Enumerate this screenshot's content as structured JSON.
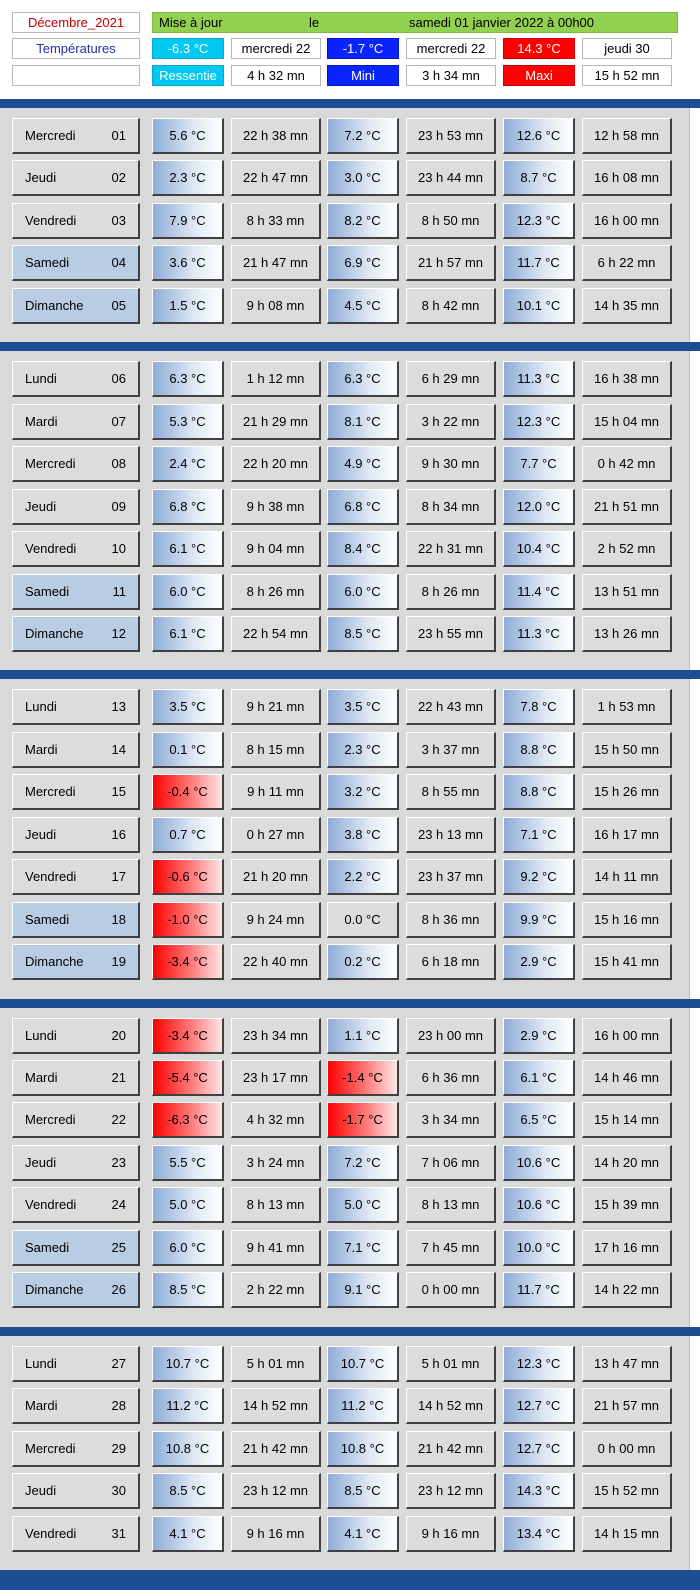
{
  "header": {
    "month_label": "Décembre_2021",
    "section_label": "Températures",
    "update_label": "Mise à jour",
    "update_le": "le",
    "update_date": "samedi 01 janvier 2022 à 00h00",
    "summary": {
      "ressentie_value": "-6.3 °C",
      "ressentie_date": "mercredi 22",
      "ressentie_label": "Ressentie",
      "ressentie_time": "4 h 32 mn",
      "mini_value": "-1.7 °C",
      "mini_date": "mercredi 22",
      "mini_label": "Mini",
      "mini_time": "3 h 34 mn",
      "maxi_value": "14.3 °C",
      "maxi_date": "jeudi 30",
      "maxi_label": "Maxi",
      "maxi_time": "15 h 52 mn"
    }
  },
  "colors": {
    "separator": "#1f4e94",
    "weekend_day": "#b8cce4",
    "ressentie": "#00c8f0",
    "mini": "#0a24ff",
    "maxi": "#ff0000",
    "update_bar": "#92d050"
  },
  "weeks": [
    {
      "days": [
        {
          "name": "Mercredi",
          "num": "01",
          "weekend": false,
          "r": "5.6 °C",
          "rt": "22 h 38 mn",
          "mn": "7.2 °C",
          "mnt": "23 h 53 mn",
          "mx": "12.6 °C",
          "mxt": "12 h 58 mn"
        },
        {
          "name": "Jeudi",
          "num": "02",
          "weekend": false,
          "r": "2.3 °C",
          "rt": "22 h 47 mn",
          "mn": "3.0 °C",
          "mnt": "23 h 44 mn",
          "mx": "8.7 °C",
          "mxt": "16 h 08 mn"
        },
        {
          "name": "Vendredi",
          "num": "03",
          "weekend": false,
          "r": "7.9 °C",
          "rt": "8 h 33 mn",
          "mn": "8.2 °C",
          "mnt": "8 h 50 mn",
          "mx": "12.3 °C",
          "mxt": "16 h 00 mn"
        },
        {
          "name": "Samedi",
          "num": "04",
          "weekend": true,
          "r": "3.6 °C",
          "rt": "21 h 47 mn",
          "mn": "6.9 °C",
          "mnt": "21 h 57 mn",
          "mx": "11.7 °C",
          "mxt": "6 h 22 mn"
        },
        {
          "name": "Dimanche",
          "num": "05",
          "weekend": true,
          "r": "1.5 °C",
          "rt": "9 h 08 mn",
          "mn": "4.5 °C",
          "mnt": "8 h 42 mn",
          "mx": "10.1 °C",
          "mxt": "14 h 35 mn"
        }
      ]
    },
    {
      "days": [
        {
          "name": "Lundi",
          "num": "06",
          "weekend": false,
          "r": "6.3 °C",
          "rt": "1 h 12 mn",
          "mn": "6.3 °C",
          "mnt": "6 h 29 mn",
          "mx": "11.3 °C",
          "mxt": "16 h 38 mn"
        },
        {
          "name": "Mardi",
          "num": "07",
          "weekend": false,
          "r": "5.3 °C",
          "rt": "21 h 29 mn",
          "mn": "8.1 °C",
          "mnt": "3 h 22 mn",
          "mx": "12.3 °C",
          "mxt": "15 h 04 mn"
        },
        {
          "name": "Mercredi",
          "num": "08",
          "weekend": false,
          "r": "2.4 °C",
          "rt": "22 h 20 mn",
          "mn": "4.9 °C",
          "mnt": "9 h 30 mn",
          "mx": "7.7 °C",
          "mxt": "0 h 42 mn"
        },
        {
          "name": "Jeudi",
          "num": "09",
          "weekend": false,
          "r": "6.8 °C",
          "rt": "9 h 38 mn",
          "mn": "6.8 °C",
          "mnt": "8 h 34 mn",
          "mx": "12.0 °C",
          "mxt": "21 h 51 mn"
        },
        {
          "name": "Vendredi",
          "num": "10",
          "weekend": false,
          "r": "6.1 °C",
          "rt": "9 h 04 mn",
          "mn": "8.4 °C",
          "mnt": "22 h 31 mn",
          "mx": "10.4 °C",
          "mxt": "2 h 52 mn"
        },
        {
          "name": "Samedi",
          "num": "11",
          "weekend": true,
          "r": "6.0 °C",
          "rt": "8 h 26 mn",
          "mn": "6.0 °C",
          "mnt": "8 h 26 mn",
          "mx": "11.4 °C",
          "mxt": "13 h 51 mn"
        },
        {
          "name": "Dimanche",
          "num": "12",
          "weekend": true,
          "r": "6.1 °C",
          "rt": "22 h 54 mn",
          "mn": "8.5 °C",
          "mnt": "23 h 55 mn",
          "mx": "11.3 °C",
          "mxt": "13 h 26 mn"
        }
      ]
    },
    {
      "days": [
        {
          "name": "Lundi",
          "num": "13",
          "weekend": false,
          "r": "3.5 °C",
          "rt": "9 h 21 mn",
          "mn": "3.5 °C",
          "mnt": "22 h 43 mn",
          "mx": "7.8 °C",
          "mxt": "1 h 53 mn"
        },
        {
          "name": "Mardi",
          "num": "14",
          "weekend": false,
          "r": "0.1 °C",
          "rt": "8 h 15 mn",
          "mn": "2.3 °C",
          "mnt": "3 h 37 mn",
          "mx": "8.8 °C",
          "mxt": "15 h 50 mn"
        },
        {
          "name": "Mercredi",
          "num": "15",
          "weekend": false,
          "r": "-0.4 °C",
          "rt": "9 h 11 mn",
          "mn": "3.2 °C",
          "mnt": "8 h 55 mn",
          "mx": "8.8 °C",
          "mxt": "15 h 26 mn"
        },
        {
          "name": "Jeudi",
          "num": "16",
          "weekend": false,
          "r": "0.7 °C",
          "rt": "0 h 27 mn",
          "mn": "3.8 °C",
          "mnt": "23 h 13 mn",
          "mx": "7.1 °C",
          "mxt": "16 h 17 mn"
        },
        {
          "name": "Vendredi",
          "num": "17",
          "weekend": false,
          "r": "-0.6 °C",
          "rt": "21 h 20 mn",
          "mn": "2.2 °C",
          "mnt": "23 h 37 mn",
          "mx": "9.2 °C",
          "mxt": "14 h 11 mn"
        },
        {
          "name": "Samedi",
          "num": "18",
          "weekend": true,
          "r": "-1.0 °C",
          "rt": "9 h 24 mn",
          "mn": "0.0 °C",
          "mnt": "8 h 36 mn",
          "mx": "9.9 °C",
          "mxt": "15 h 16 mn"
        },
        {
          "name": "Dimanche",
          "num": "19",
          "weekend": true,
          "r": "-3.4 °C",
          "rt": "22 h 40 mn",
          "mn": "0.2 °C",
          "mnt": "6 h 18 mn",
          "mx": "2.9 °C",
          "mxt": "15 h 41 mn"
        }
      ]
    },
    {
      "days": [
        {
          "name": "Lundi",
          "num": "20",
          "weekend": false,
          "r": "-3.4 °C",
          "rt": "23 h 34 mn",
          "mn": "1.1 °C",
          "mnt": "23 h 00 mn",
          "mx": "2.9 °C",
          "mxt": "16 h 00 mn"
        },
        {
          "name": "Mardi",
          "num": "21",
          "weekend": false,
          "r": "-5.4 °C",
          "rt": "23 h 17 mn",
          "mn": "-1.4 °C",
          "mnt": "6 h 36 mn",
          "mx": "6.1 °C",
          "mxt": "14 h 46 mn"
        },
        {
          "name": "Mercredi",
          "num": "22",
          "weekend": false,
          "r": "-6.3 °C",
          "rt": "4 h 32 mn",
          "mn": "-1.7 °C",
          "mnt": "3 h 34 mn",
          "mx": "6.5 °C",
          "mxt": "15 h 14 mn"
        },
        {
          "name": "Jeudi",
          "num": "23",
          "weekend": false,
          "r": "5.5 °C",
          "rt": "3 h 24 mn",
          "mn": "7.2 °C",
          "mnt": "7 h 06 mn",
          "mx": "10.6 °C",
          "mxt": "14 h 20 mn"
        },
        {
          "name": "Vendredi",
          "num": "24",
          "weekend": false,
          "r": "5.0 °C",
          "rt": "8 h 13 mn",
          "mn": "5.0 °C",
          "mnt": "8 h 13 mn",
          "mx": "10.6 °C",
          "mxt": "15 h 39 mn"
        },
        {
          "name": "Samedi",
          "num": "25",
          "weekend": true,
          "r": "6.0 °C",
          "rt": "9 h 41 mn",
          "mn": "7.1 °C",
          "mnt": "7 h 45 mn",
          "mx": "10.0 °C",
          "mxt": "17 h 16 mn"
        },
        {
          "name": "Dimanche",
          "num": "26",
          "weekend": true,
          "r": "8.5 °C",
          "rt": "2 h 22 mn",
          "mn": "9.1 °C",
          "mnt": "0 h 00 mn",
          "mx": "11.7 °C",
          "mxt": "14 h 22 mn"
        }
      ]
    },
    {
      "days": [
        {
          "name": "Lundi",
          "num": "27",
          "weekend": false,
          "r": "10.7 °C",
          "rt": "5 h 01 mn",
          "mn": "10.7 °C",
          "mnt": "5 h 01 mn",
          "mx": "12.3 °C",
          "mxt": "13 h 47 mn"
        },
        {
          "name": "Mardi",
          "num": "28",
          "weekend": false,
          "r": "11.2 °C",
          "rt": "14 h 52 mn",
          "mn": "11.2 °C",
          "mnt": "14 h 52 mn",
          "mx": "12.7 °C",
          "mxt": "21 h 57 mn"
        },
        {
          "name": "Mercredi",
          "num": "29",
          "weekend": false,
          "r": "10.8 °C",
          "rt": "21 h 42 mn",
          "mn": "10.8 °C",
          "mnt": "21 h 42 mn",
          "mx": "12.7 °C",
          "mxt": "0 h 00 mn"
        },
        {
          "name": "Jeudi",
          "num": "30",
          "weekend": false,
          "r": "8.5 °C",
          "rt": "23 h 12 mn",
          "mn": "8.5 °C",
          "mnt": "23 h 12 mn",
          "mx": "14.3 °C",
          "mxt": "15 h 52 mn"
        },
        {
          "name": "Vendredi",
          "num": "31",
          "weekend": false,
          "r": "4.1 °C",
          "rt": "9 h 16 mn",
          "mn": "4.1 °C",
          "mnt": "9 h 16 mn",
          "mx": "13.4 °C",
          "mxt": "14 h 15 mn"
        }
      ]
    }
  ]
}
